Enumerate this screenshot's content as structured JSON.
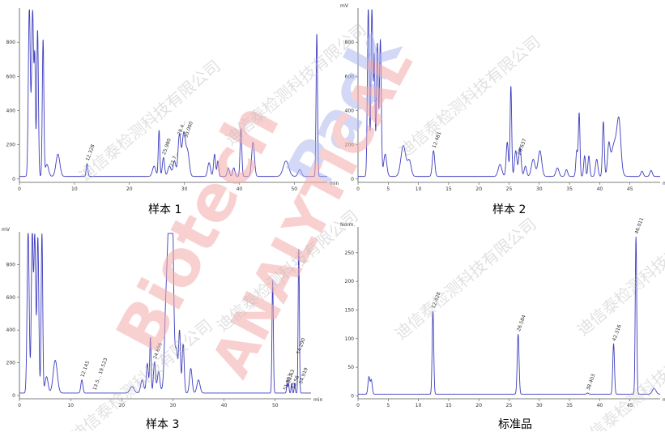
{
  "colors": {
    "trace": "#3d3dc0",
    "axis": "#555555",
    "text": "#333333",
    "watermark_red": "#f4a9a9",
    "watermark_blue": "#aeb9ee",
    "watermark_gray": "#bdbdbd"
  },
  "watermark": {
    "brand_line1": "Biotech",
    "brand_line2": "Pack",
    "brand_line3": "ANALYTICAL",
    "company": "迪信泰检测科技有限公司"
  },
  "chart_data": [
    {
      "type": "line",
      "caption": "样本 1",
      "yunit": "",
      "xunit": "min",
      "xlim": [
        0,
        56
      ],
      "ylim": [
        -20,
        1000
      ],
      "xticks": [
        0,
        10,
        20,
        30,
        40,
        50
      ],
      "yticks": [
        0,
        200,
        400,
        600,
        800
      ],
      "baseline": 15,
      "peaks": [
        {
          "t": 1.8,
          "h": 990,
          "w": 0.18
        },
        {
          "t": 2.4,
          "h": 970,
          "w": 0.18
        },
        {
          "t": 2.8,
          "h": 640,
          "w": 0.12
        },
        {
          "t": 3.3,
          "h": 860,
          "w": 0.15
        },
        {
          "t": 4.3,
          "h": 800,
          "w": 0.14
        },
        {
          "t": 5.0,
          "h": 70,
          "w": 0.3
        },
        {
          "t": 7.0,
          "h": 130,
          "w": 0.35
        },
        {
          "t": 12.3,
          "h": 75,
          "w": 0.15
        },
        {
          "t": 24.5,
          "h": 60,
          "w": 0.3
        },
        {
          "t": 25.4,
          "h": 270,
          "w": 0.14
        },
        {
          "t": 26.2,
          "h": 110,
          "w": 0.2
        },
        {
          "t": 27.3,
          "h": 60,
          "w": 0.3
        },
        {
          "t": 28.2,
          "h": 90,
          "w": 0.25
        },
        {
          "t": 29.1,
          "h": 240,
          "w": 0.25
        },
        {
          "t": 29.9,
          "h": 250,
          "w": 0.3
        },
        {
          "t": 30.6,
          "h": 140,
          "w": 0.3
        },
        {
          "t": 34.5,
          "h": 80,
          "w": 0.25
        },
        {
          "t": 35.5,
          "h": 130,
          "w": 0.18
        },
        {
          "t": 36.1,
          "h": 90,
          "w": 0.15
        },
        {
          "t": 38.0,
          "h": 50,
          "w": 0.2
        },
        {
          "t": 39.0,
          "h": 50,
          "w": 0.2
        },
        {
          "t": 40.3,
          "h": 280,
          "w": 0.16
        },
        {
          "t": 42.5,
          "h": 200,
          "w": 0.25
        },
        {
          "t": 48.5,
          "h": 90,
          "w": 0.5
        },
        {
          "t": 51.0,
          "h": 40,
          "w": 0.3
        },
        {
          "t": 54.1,
          "h": 840,
          "w": 0.13
        }
      ],
      "labels": [
        {
          "t": 12.3,
          "text": "12.328"
        },
        {
          "t": 26.2,
          "text": "25.980"
        },
        {
          "t": 27.6,
          "text": "27.7..."
        },
        {
          "t": 29.0,
          "text": "28.4..."
        },
        {
          "t": 30.2,
          "text": "30.000"
        }
      ]
    },
    {
      "type": "line",
      "caption": "样本 2",
      "yunit": "mV",
      "xunit": "min",
      "xlim": [
        0,
        50
      ],
      "ylim": [
        -20,
        1000
      ],
      "xticks": [
        0,
        5,
        10,
        15,
        20,
        25,
        30,
        35,
        40,
        45
      ],
      "yticks": [
        0,
        200,
        400,
        600,
        800
      ],
      "baseline": 15,
      "peaks": [
        {
          "t": 1.7,
          "h": 990,
          "w": 0.15
        },
        {
          "t": 2.3,
          "h": 980,
          "w": 0.15
        },
        {
          "t": 2.7,
          "h": 690,
          "w": 0.12
        },
        {
          "t": 3.2,
          "h": 780,
          "w": 0.15
        },
        {
          "t": 3.7,
          "h": 800,
          "w": 0.15
        },
        {
          "t": 4.5,
          "h": 130,
          "w": 0.25
        },
        {
          "t": 7.5,
          "h": 180,
          "w": 0.4
        },
        {
          "t": 8.5,
          "h": 90,
          "w": 0.3
        },
        {
          "t": 12.5,
          "h": 150,
          "w": 0.2
        },
        {
          "t": 23.5,
          "h": 70,
          "w": 0.3
        },
        {
          "t": 24.7,
          "h": 200,
          "w": 0.18
        },
        {
          "t": 25.3,
          "h": 530,
          "w": 0.13
        },
        {
          "t": 26.1,
          "h": 150,
          "w": 0.2
        },
        {
          "t": 26.8,
          "h": 170,
          "w": 0.2
        },
        {
          "t": 27.7,
          "h": 60,
          "w": 0.2
        },
        {
          "t": 29.0,
          "h": 100,
          "w": 0.3
        },
        {
          "t": 30.1,
          "h": 150,
          "w": 0.3
        },
        {
          "t": 33.0,
          "h": 50,
          "w": 0.25
        },
        {
          "t": 34.5,
          "h": 40,
          "w": 0.2
        },
        {
          "t": 36.2,
          "h": 150,
          "w": 0.15
        },
        {
          "t": 36.6,
          "h": 370,
          "w": 0.13
        },
        {
          "t": 37.5,
          "h": 120,
          "w": 0.15
        },
        {
          "t": 38.2,
          "h": 120,
          "w": 0.15
        },
        {
          "t": 39.5,
          "h": 100,
          "w": 0.2
        },
        {
          "t": 40.6,
          "h": 320,
          "w": 0.15
        },
        {
          "t": 41.5,
          "h": 150,
          "w": 0.2
        },
        {
          "t": 42.5,
          "h": 200,
          "w": 0.6
        },
        {
          "t": 43.2,
          "h": 240,
          "w": 0.3
        },
        {
          "t": 47.0,
          "h": 30,
          "w": 0.2
        },
        {
          "t": 48.5,
          "h": 35,
          "w": 0.2
        }
      ],
      "labels": [
        {
          "t": 12.5,
          "text": "12.481"
        },
        {
          "t": 26.6,
          "text": "26.637"
        }
      ]
    },
    {
      "type": "line",
      "caption": "样本 3",
      "yunit": "mV",
      "xunit": "min",
      "xlim": [
        0,
        57
      ],
      "ylim": [
        -20,
        1000
      ],
      "xticks": [
        0,
        10,
        20,
        30,
        40,
        50
      ],
      "yticks": [
        0,
        200,
        400,
        600,
        800
      ],
      "baseline": 15,
      "peaks": [
        {
          "t": 1.7,
          "h": 990,
          "w": 0.2
        },
        {
          "t": 2.5,
          "h": 980,
          "w": 0.18
        },
        {
          "t": 3.0,
          "h": 950,
          "w": 0.18
        },
        {
          "t": 3.6,
          "h": 950,
          "w": 0.18
        },
        {
          "t": 4.4,
          "h": 980,
          "w": 0.15
        },
        {
          "t": 5.3,
          "h": 100,
          "w": 0.3
        },
        {
          "t": 7.0,
          "h": 200,
          "w": 0.4
        },
        {
          "t": 12.2,
          "h": 80,
          "w": 0.2
        },
        {
          "t": 22.0,
          "h": 40,
          "w": 0.4
        },
        {
          "t": 24.0,
          "h": 80,
          "w": 0.3
        },
        {
          "t": 25.0,
          "h": 180,
          "w": 0.2
        },
        {
          "t": 25.6,
          "h": 340,
          "w": 0.14
        },
        {
          "t": 26.4,
          "h": 190,
          "w": 0.2
        },
        {
          "t": 27.2,
          "h": 130,
          "w": 0.25
        },
        {
          "t": 28.5,
          "h": 120,
          "w": 0.2
        },
        {
          "t": 29.2,
          "h": 990,
          "w": 0.5
        },
        {
          "t": 29.8,
          "h": 990,
          "w": 0.3
        },
        {
          "t": 30.7,
          "h": 250,
          "w": 0.25
        },
        {
          "t": 31.3,
          "h": 370,
          "w": 0.18
        },
        {
          "t": 32.0,
          "h": 300,
          "w": 0.2
        },
        {
          "t": 33.5,
          "h": 150,
          "w": 0.25
        },
        {
          "t": 35.0,
          "h": 80,
          "w": 0.3
        },
        {
          "t": 49.5,
          "h": 690,
          "w": 0.13
        },
        {
          "t": 52.3,
          "h": 60,
          "w": 0.1
        },
        {
          "t": 52.6,
          "h": 60,
          "w": 0.1
        },
        {
          "t": 53.2,
          "h": 60,
          "w": 0.1
        },
        {
          "t": 53.8,
          "h": 60,
          "w": 0.1
        },
        {
          "t": 54.6,
          "h": 880,
          "w": 0.12
        }
      ],
      "labels": [
        {
          "t": 12.2,
          "text": "12.145"
        },
        {
          "t": 14.6,
          "text": "13.5... 19.523"
        },
        {
          "t": 26.4,
          "text": "24.656"
        },
        {
          "t": 51.8,
          "text": "51.963"
        },
        {
          "t": 52.5,
          "text": "52.63"
        },
        {
          "t": 53.4,
          "text": "53.56"
        },
        {
          "t": 54.4,
          "text": "54.290"
        },
        {
          "t": 54.9,
          "text": "54.919"
        }
      ]
    },
    {
      "type": "line",
      "caption": "标准品",
      "yunit": "Norm.",
      "xunit": "min",
      "xlim": [
        0,
        50
      ],
      "ylim": [
        -5,
        295
      ],
      "xticks": [
        0,
        5,
        10,
        15,
        20,
        25,
        30,
        35,
        40,
        45
      ],
      "yticks": [
        0,
        50,
        100,
        150,
        200,
        250
      ],
      "baseline": 3,
      "peaks": [
        {
          "t": 1.8,
          "h": 30,
          "w": 0.15
        },
        {
          "t": 2.2,
          "h": 25,
          "w": 0.15
        },
        {
          "t": 12.4,
          "h": 145,
          "w": 0.13
        },
        {
          "t": 26.5,
          "h": 105,
          "w": 0.15
        },
        {
          "t": 38.0,
          "h": 2,
          "w": 0.15
        },
        {
          "t": 42.3,
          "h": 88,
          "w": 0.14
        },
        {
          "t": 46.0,
          "h": 275,
          "w": 0.12
        },
        {
          "t": 49.0,
          "h": 10,
          "w": 0.3
        }
      ],
      "labels": [
        {
          "t": 12.4,
          "text": "12.428"
        },
        {
          "t": 26.5,
          "text": "26.584"
        },
        {
          "t": 38.0,
          "text": "38.403"
        },
        {
          "t": 42.3,
          "text": "42.316"
        },
        {
          "t": 46.0,
          "text": "46.011"
        }
      ]
    }
  ]
}
